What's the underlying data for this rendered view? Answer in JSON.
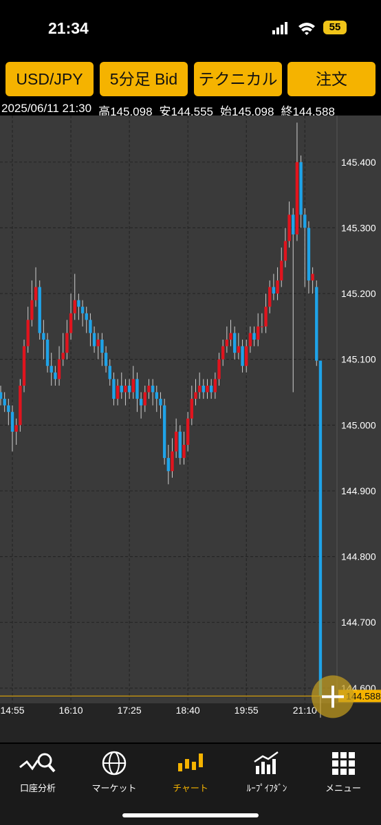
{
  "status_bar": {
    "time": "21:34",
    "battery": "55"
  },
  "toolbar": {
    "buttons": [
      "USD/JPY",
      "5分足 Bid",
      "テクニカル",
      "注文"
    ]
  },
  "info": {
    "datetime": "2025/06/11 21:30",
    "high_label": "高",
    "low_label": "安",
    "open_label": "始",
    "close_label": "終"
  },
  "chart_data": {
    "type": "candlestick",
    "categories": [
      null,
      null,
      null,
      "14:55",
      null,
      null,
      null,
      null,
      null,
      null,
      null,
      null,
      null,
      null,
      null,
      null,
      null,
      null,
      "16:10",
      null,
      null,
      null,
      null,
      null,
      null,
      null,
      null,
      null,
      null,
      null,
      null,
      null,
      null,
      "17:25",
      null,
      null,
      null,
      null,
      null,
      null,
      null,
      null,
      null,
      null,
      null,
      null,
      null,
      null,
      "18:40",
      null,
      null,
      null,
      null,
      null,
      null,
      null,
      null,
      null,
      null,
      null,
      null,
      null,
      null,
      "19:55",
      null,
      null,
      null,
      null,
      null,
      null,
      null,
      null,
      null,
      null,
      null,
      null,
      null,
      null,
      "21:10",
      null,
      null,
      null,
      null
    ],
    "open": [
      145.05,
      145.04,
      145.03,
      145.02,
      144.99,
      145.0,
      145.06,
      145.12,
      145.16,
      145.19,
      145.21,
      145.14,
      145.13,
      145.09,
      145.08,
      145.07,
      145.1,
      145.11,
      145.14,
      145.17,
      145.19,
      145.18,
      145.17,
      145.16,
      145.14,
      145.12,
      145.13,
      145.11,
      145.09,
      145.07,
      145.04,
      145.06,
      145.05,
      145.06,
      145.05,
      145.07,
      145.04,
      145.03,
      145.05,
      145.06,
      145.05,
      145.04,
      145.03,
      144.95,
      144.93,
      144.96,
      144.99,
      144.95,
      144.97,
      145.01,
      145.04,
      145.05,
      145.06,
      145.05,
      145.06,
      145.05,
      145.07,
      145.1,
      145.12,
      145.13,
      145.14,
      145.11,
      145.12,
      145.09,
      145.12,
      145.14,
      145.13,
      145.15,
      145.15,
      145.18,
      145.21,
      145.2,
      145.22,
      145.25,
      145.28,
      145.32,
      145.29,
      145.4,
      145.32,
      145.3,
      145.22,
      145.21,
      145.098
    ],
    "high": [
      145.06,
      145.05,
      145.04,
      145.03,
      145.01,
      145.07,
      145.13,
      145.18,
      145.22,
      145.24,
      145.22,
      145.16,
      145.14,
      145.11,
      145.09,
      145.12,
      145.14,
      145.16,
      145.2,
      145.23,
      145.2,
      145.19,
      145.18,
      145.17,
      145.15,
      145.14,
      145.14,
      145.12,
      145.1,
      145.08,
      145.07,
      145.08,
      145.07,
      145.07,
      145.09,
      145.08,
      145.05,
      145.06,
      145.07,
      145.07,
      145.06,
      145.05,
      145.04,
      144.97,
      144.98,
      145.01,
      145.0,
      144.99,
      145.02,
      145.06,
      145.07,
      145.08,
      145.07,
      145.07,
      145.07,
      145.08,
      145.11,
      145.13,
      145.15,
      145.16,
      145.15,
      145.14,
      145.13,
      145.13,
      145.15,
      145.15,
      145.17,
      145.17,
      145.2,
      145.22,
      145.23,
      145.24,
      145.27,
      145.3,
      145.34,
      145.33,
      145.46,
      145.41,
      145.33,
      145.31,
      145.24,
      145.22,
      145.098
    ],
    "low": [
      145.03,
      145.02,
      145.0,
      144.96,
      144.97,
      144.99,
      145.05,
      145.11,
      145.15,
      145.18,
      145.13,
      145.1,
      145.08,
      145.06,
      145.06,
      145.06,
      145.09,
      145.1,
      145.13,
      145.16,
      145.16,
      145.15,
      145.14,
      145.12,
      145.11,
      145.1,
      145.09,
      145.08,
      145.06,
      145.03,
      145.03,
      145.04,
      145.03,
      145.04,
      145.04,
      145.02,
      145.01,
      145.02,
      145.04,
      145.03,
      145.02,
      145.01,
      144.94,
      144.91,
      144.92,
      144.95,
      144.94,
      144.94,
      144.96,
      145.0,
      145.03,
      145.04,
      145.04,
      145.04,
      145.04,
      145.04,
      145.06,
      145.09,
      145.11,
      145.12,
      145.1,
      145.1,
      145.08,
      145.08,
      145.11,
      145.12,
      145.12,
      145.14,
      145.14,
      145.17,
      145.19,
      145.19,
      145.21,
      145.24,
      145.27,
      145.05,
      145.28,
      145.3,
      145.21,
      145.2,
      145.2,
      145.09,
      144.555
    ],
    "close": [
      145.04,
      145.03,
      145.02,
      144.99,
      145.0,
      145.06,
      145.12,
      145.16,
      145.19,
      145.21,
      145.14,
      145.13,
      145.09,
      145.08,
      145.07,
      145.1,
      145.11,
      145.14,
      145.17,
      145.19,
      145.18,
      145.17,
      145.16,
      145.14,
      145.12,
      145.13,
      145.11,
      145.09,
      145.07,
      145.04,
      145.06,
      145.05,
      145.06,
      145.05,
      145.07,
      145.04,
      145.03,
      145.05,
      145.06,
      145.05,
      145.04,
      145.03,
      144.95,
      144.93,
      144.96,
      144.99,
      144.95,
      144.97,
      145.01,
      145.04,
      145.05,
      145.06,
      145.05,
      145.06,
      145.05,
      145.07,
      145.1,
      145.12,
      145.13,
      145.14,
      145.11,
      145.12,
      145.09,
      145.12,
      145.14,
      145.13,
      145.15,
      145.15,
      145.18,
      145.21,
      145.2,
      145.22,
      145.25,
      145.28,
      145.32,
      145.29,
      145.4,
      145.32,
      145.3,
      145.22,
      145.23,
      145.098,
      144.588
    ],
    "up_color": "#e0141e",
    "down_color": "#1fa3e8",
    "ylim": [
      144.58,
      145.474
    ],
    "yticks": [
      {
        "value": 144.6,
        "label": "144.600"
      },
      {
        "value": 144.7,
        "label": "144.700"
      },
      {
        "value": 144.8,
        "label": "144.800"
      },
      {
        "value": 144.9,
        "label": "144.900"
      },
      {
        "value": 145.0,
        "label": "145.000"
      },
      {
        "value": 145.1,
        "label": "145.100"
      },
      {
        "value": 145.2,
        "label": "145.200"
      },
      {
        "value": 145.3,
        "label": "145.300"
      },
      {
        "value": 145.4,
        "label": "145.400"
      }
    ],
    "grid": true
  },
  "tab_bar": {
    "tabs": [
      "口座分析",
      "マーケット",
      "チャート",
      "ﾙｰﾌﾟｲﾌﾀﾞﾝ",
      "メニュー"
    ],
    "active": 2
  }
}
